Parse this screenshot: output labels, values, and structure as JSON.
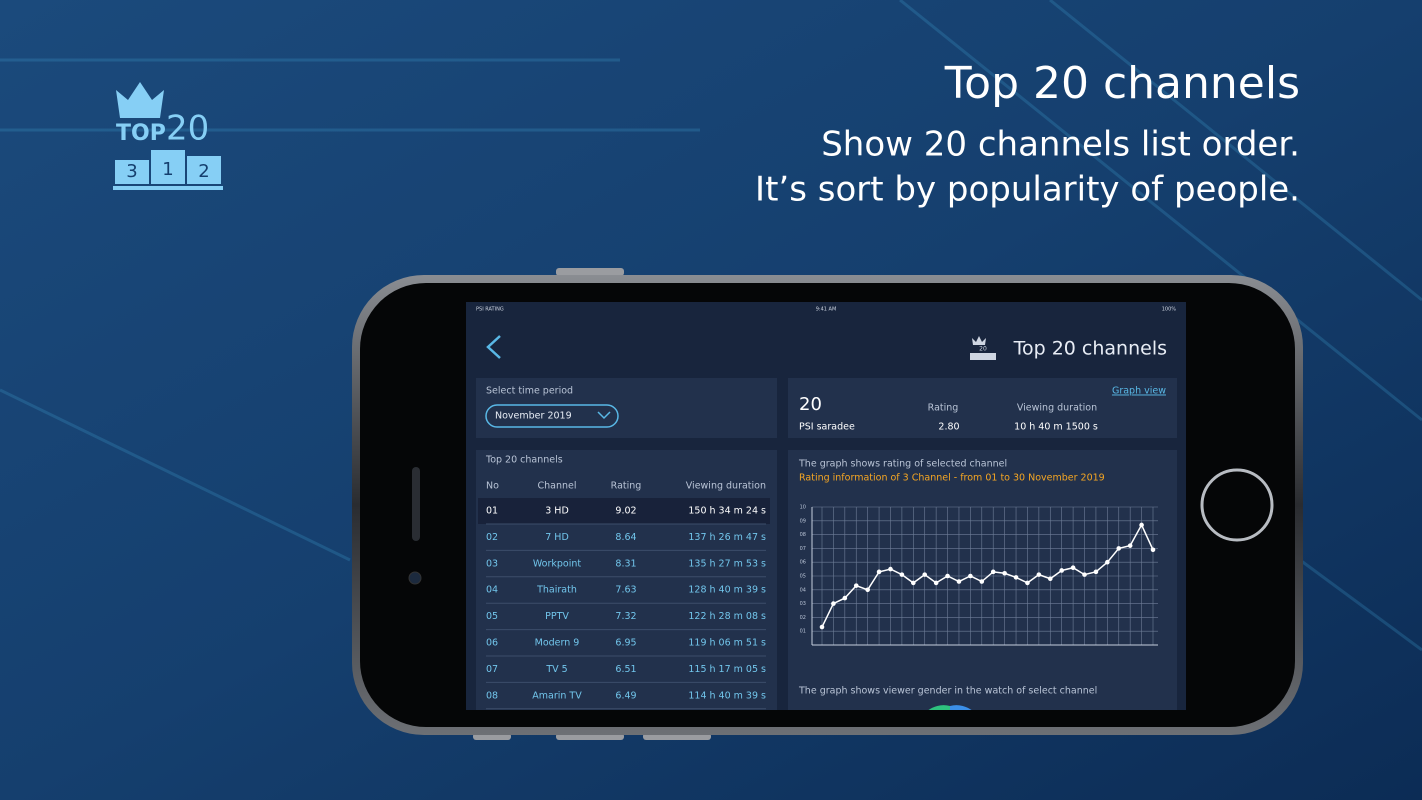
{
  "header": {
    "title": "Top 20 channels",
    "lines": [
      "Show 20 channels list order.",
      "It’s sort by popularity of people."
    ]
  },
  "badge": {
    "top": "TOP",
    "number": "20",
    "podium": [
      "3",
      "1",
      "2"
    ]
  },
  "status_bar": {
    "carrier": "PSI RATING",
    "time": "9:41 AM",
    "battery": "100%"
  },
  "app_bar": {
    "title": "Top 20 channels"
  },
  "period": {
    "label": "Select time period",
    "value": "November 2019"
  },
  "summary": {
    "link": "Graph view",
    "rank": "20",
    "channel": "PSI saradee",
    "rating_label": "Rating",
    "rating": "2.80",
    "duration_label": "Viewing duration",
    "duration": "10 h 40 m 1500 s"
  },
  "table": {
    "title": "Top 20 channels",
    "columns": [
      "No",
      "Channel",
      "Rating",
      "Viewing duration"
    ],
    "rows": [
      [
        "01",
        "3 HD",
        "9.02",
        "150 h 34 m 24 s"
      ],
      [
        "02",
        "7 HD",
        "8.64",
        "137 h 26 m 47 s"
      ],
      [
        "03",
        "Workpoint",
        "8.31",
        "135 h 27 m 53 s"
      ],
      [
        "04",
        "Thairath",
        "7.63",
        "128 h 40 m 39 s"
      ],
      [
        "05",
        "PPTV",
        "7.32",
        "122 h 28 m 08 s"
      ],
      [
        "06",
        "Modern 9",
        "6.95",
        "119 h 06 m 51 s"
      ],
      [
        "07",
        "TV 5",
        "6.51",
        "115 h 17 m 05 s"
      ],
      [
        "08",
        "Amarin TV",
        "6.49",
        "114 h 40 m 39 s"
      ]
    ]
  },
  "graph": {
    "caption": "The graph shows rating of selected channel",
    "subtitle": "Rating information of 3 Channel - from 01 to 30 November 2019",
    "chart": {
      "type": "line",
      "color": "#ffffff",
      "ylim": [
        0,
        10
      ],
      "yticks": [
        {
          "value": 1,
          "label": "01"
        },
        {
          "value": 2,
          "label": "02"
        },
        {
          "value": 3,
          "label": "03"
        },
        {
          "value": 4,
          "label": "04"
        },
        {
          "value": 5,
          "label": "05"
        },
        {
          "value": 6,
          "label": "06"
        },
        {
          "value": 7,
          "label": "07"
        },
        {
          "value": 8,
          "label": "08"
        },
        {
          "value": 9,
          "label": "09"
        },
        {
          "value": 10,
          "label": "10"
        }
      ],
      "values": [
        1.3,
        3.0,
        3.4,
        4.3,
        4.0,
        5.3,
        5.5,
        5.1,
        4.5,
        5.1,
        4.5,
        5.0,
        4.6,
        5.0,
        4.6,
        5.3,
        5.2,
        4.9,
        4.5,
        5.1,
        4.8,
        5.4,
        5.6,
        5.1,
        5.3,
        6.0,
        7.0,
        7.2,
        8.7,
        6.9
      ],
      "grid": true
    },
    "footer": "The graph shows viewer gender in the watch of select channel"
  }
}
